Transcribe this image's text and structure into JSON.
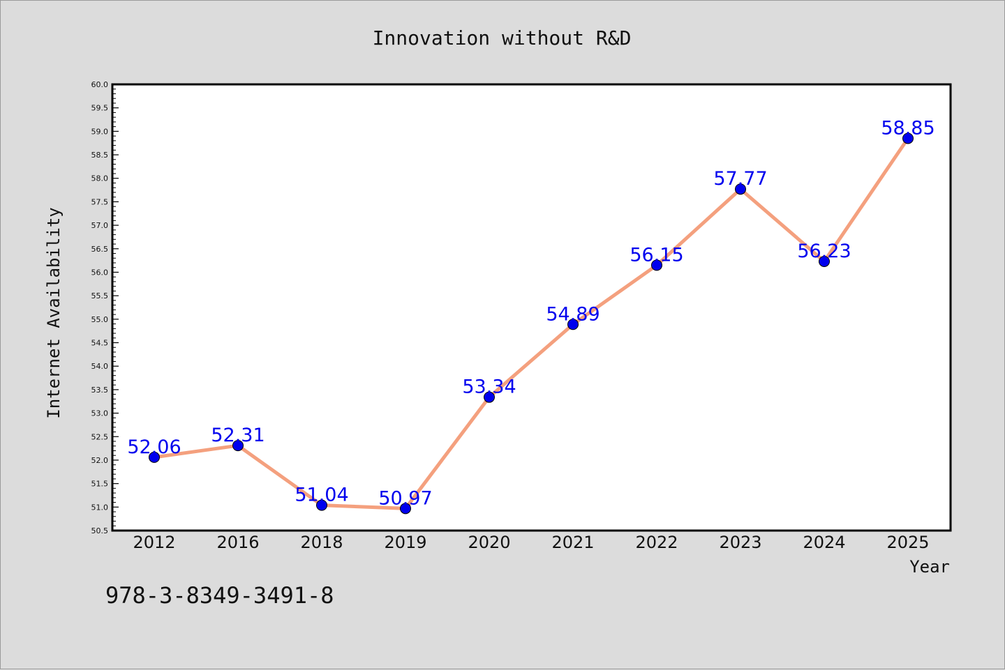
{
  "chart_data": {
    "type": "line",
    "title": "Innovation without R&D",
    "xlabel": "Year",
    "ylabel": "Internet Availability",
    "categories": [
      "2012",
      "2016",
      "2018",
      "2019",
      "2020",
      "2021",
      "2022",
      "2023",
      "2024",
      "2025"
    ],
    "values": [
      52.06,
      52.31,
      51.04,
      50.97,
      53.34,
      54.89,
      56.15,
      57.77,
      56.23,
      58.85
    ],
    "data_labels": [
      "52.06",
      "52.31",
      "51.04",
      "50.97",
      "53.34",
      "54.89",
      "56.15",
      "57.77",
      "56.23",
      "58.85"
    ],
    "ylim": [
      50.5,
      60.0
    ],
    "yticks": [
      "50.5",
      "51.0",
      "51.5",
      "52.0",
      "52.5",
      "53.0",
      "53.5",
      "54.0",
      "54.5",
      "55.0",
      "55.5",
      "56.0",
      "56.5",
      "57.0",
      "57.5",
      "58.0",
      "58.5",
      "59.0",
      "59.5",
      "60.0"
    ],
    "grid": false,
    "line_color": "#f4a07e",
    "marker_color": "#0000ee",
    "label_color": "#0000ee"
  },
  "footer": {
    "isbn": "978-3-8349-3491-8"
  }
}
